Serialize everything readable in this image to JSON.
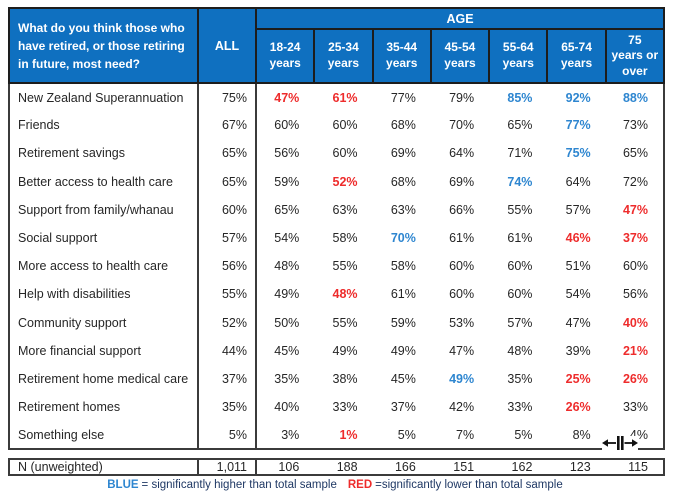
{
  "chart_data": {
    "type": "table",
    "title": "What do you think those who have retired, or those retiring in future, most need?",
    "column_group": "AGE",
    "columns": [
      "ALL",
      "18-24 years",
      "25-34 years",
      "35-44 years",
      "45-54 years",
      "55-64 years",
      "65-74 years",
      "75 years or over"
    ],
    "unit": "%",
    "rows": [
      {
        "label": "New Zealand Superannuation",
        "values": [
          75,
          47,
          61,
          77,
          79,
          85,
          92,
          88
        ],
        "significance": [
          "",
          "low",
          "low",
          "",
          "",
          "high",
          "high",
          "high"
        ]
      },
      {
        "label": "Friends",
        "values": [
          67,
          60,
          60,
          68,
          70,
          65,
          77,
          73
        ],
        "significance": [
          "",
          "",
          "",
          "",
          "",
          "",
          "high",
          ""
        ]
      },
      {
        "label": "Retirement savings",
        "values": [
          65,
          56,
          60,
          69,
          64,
          71,
          75,
          65
        ],
        "significance": [
          "",
          "",
          "",
          "",
          "",
          "",
          "high",
          ""
        ]
      },
      {
        "label": "Better access to health care",
        "values": [
          65,
          59,
          52,
          68,
          69,
          74,
          64,
          72
        ],
        "significance": [
          "",
          "",
          "low",
          "",
          "",
          "high",
          "",
          ""
        ]
      },
      {
        "label": "Support from family/whanau",
        "values": [
          60,
          65,
          63,
          63,
          66,
          55,
          57,
          47
        ],
        "significance": [
          "",
          "",
          "",
          "",
          "",
          "",
          "",
          "low"
        ]
      },
      {
        "label": "Social support",
        "values": [
          57,
          54,
          58,
          70,
          61,
          61,
          46,
          37
        ],
        "significance": [
          "",
          "",
          "",
          "high",
          "",
          "",
          "low",
          "low"
        ]
      },
      {
        "label": "More access to health care",
        "values": [
          56,
          48,
          55,
          58,
          60,
          60,
          51,
          60
        ],
        "significance": [
          "",
          "",
          "",
          "",
          "",
          "",
          "",
          ""
        ]
      },
      {
        "label": "Help with disabilities",
        "values": [
          55,
          49,
          48,
          61,
          60,
          60,
          54,
          56
        ],
        "significance": [
          "",
          "",
          "low",
          "",
          "",
          "",
          "",
          ""
        ]
      },
      {
        "label": "Community support",
        "values": [
          52,
          50,
          55,
          59,
          53,
          57,
          47,
          40
        ],
        "significance": [
          "",
          "",
          "",
          "",
          "",
          "",
          "",
          "low"
        ]
      },
      {
        "label": "More financial support",
        "values": [
          44,
          45,
          49,
          49,
          47,
          48,
          39,
          21
        ],
        "significance": [
          "",
          "",
          "",
          "",
          "",
          "",
          "",
          "low"
        ]
      },
      {
        "label": "Retirement home medical care",
        "values": [
          37,
          35,
          38,
          45,
          49,
          35,
          25,
          26
        ],
        "significance": [
          "",
          "",
          "",
          "",
          "high",
          "",
          "low",
          "low"
        ]
      },
      {
        "label": "Retirement homes",
        "values": [
          35,
          40,
          33,
          37,
          42,
          33,
          26,
          33
        ],
        "significance": [
          "",
          "",
          "",
          "",
          "",
          "",
          "low",
          ""
        ]
      },
      {
        "label": "Something else",
        "values": [
          5,
          3,
          1,
          5,
          7,
          5,
          8,
          4
        ],
        "significance": [
          "",
          "",
          "low",
          "",
          "",
          "",
          "",
          ""
        ]
      }
    ],
    "n_row": {
      "label": "N (unweighted)",
      "values": [
        "1,011",
        "106",
        "188",
        "166",
        "151",
        "162",
        "123",
        "115"
      ]
    },
    "legend": {
      "blue": "significantly higher than total sample",
      "red": "significantly lower than total sample"
    }
  },
  "header": {
    "age_group_label": "AGE",
    "all_label": "ALL",
    "age_display": [
      "18-24\nyears",
      "25-34\nyears",
      "35-44\nyears",
      "45-54\nyears",
      "55-64\nyears",
      "65-74\nyears",
      "75\nyears or\nover"
    ]
  },
  "footnote": {
    "blue_label": "BLUE",
    "blue_text": "= significantly higher than total sample",
    "red_label": "RED",
    "red_text": "=significantly lower than total sample"
  },
  "icons": {
    "column_resize_cursor": "column-resize-cursor"
  },
  "colors": {
    "header_blue": "#0F70C0",
    "sig_high_blue": "#2E86D0",
    "sig_low_red": "#EE2C2C",
    "border_dark": "#3B3B3B",
    "body_text": "#262626",
    "footnote_text": "#1F3864"
  }
}
